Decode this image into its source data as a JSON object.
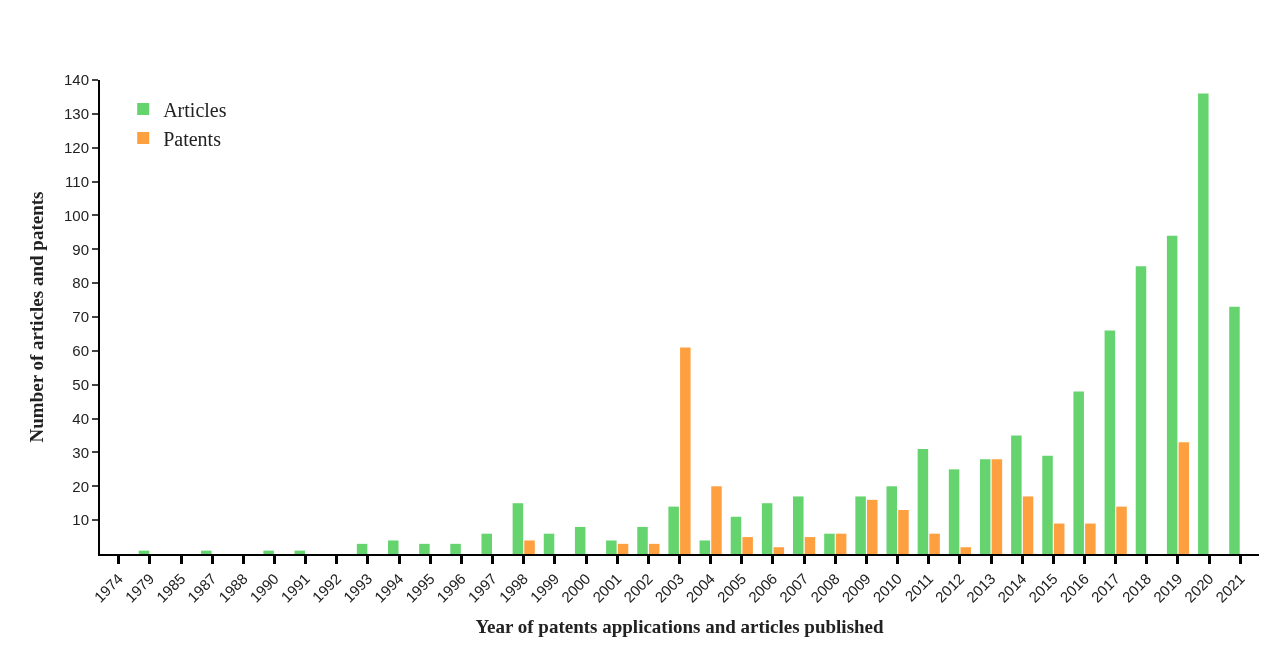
{
  "chart_data": {
    "type": "bar",
    "xlabel": "Year of patents applications and articles published",
    "ylabel": "Number of articles and patents",
    "categories": [
      "1974",
      "1979",
      "1985",
      "1987",
      "1988",
      "1990",
      "1991",
      "1992",
      "1993",
      "1994",
      "1995",
      "1996",
      "1997",
      "1998",
      "1999",
      "2000",
      "2001",
      "2002",
      "2003",
      "2004",
      "2005",
      "2006",
      "2007",
      "2008",
      "2009",
      "2010",
      "2011",
      "2012",
      "2013",
      "2014",
      "2015",
      "2016",
      "2017",
      "2018",
      "2019",
      "2020",
      "2021"
    ],
    "series": [
      {
        "name": "Articles",
        "color": "#66d46e",
        "values": [
          null,
          1,
          null,
          1,
          null,
          1,
          1,
          null,
          3,
          4,
          3,
          3,
          6,
          15,
          6,
          8,
          4,
          8,
          14,
          4,
          11,
          15,
          17,
          6,
          17,
          20,
          31,
          25,
          28,
          35,
          29,
          48,
          66,
          85,
          94,
          136,
          73
        ]
      },
      {
        "name": "Patents",
        "color": "#ffa040",
        "values": [
          null,
          null,
          null,
          null,
          null,
          null,
          null,
          null,
          null,
          null,
          null,
          null,
          null,
          4,
          null,
          null,
          3,
          3,
          61,
          20,
          5,
          2,
          5,
          6,
          16,
          13,
          6,
          2,
          28,
          17,
          9,
          9,
          14,
          null,
          33,
          null,
          null
        ]
      }
    ],
    "ylim": [
      0,
      140
    ],
    "yticks": [
      10,
      20,
      30,
      40,
      50,
      60,
      70,
      80,
      90,
      100,
      110,
      120,
      130,
      140
    ],
    "legend": "top left"
  }
}
